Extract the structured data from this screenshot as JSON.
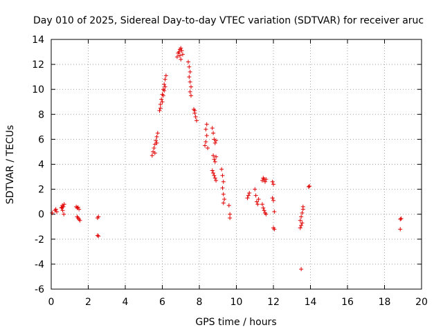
{
  "chart_data": {
    "type": "scatter",
    "title": "Day 010 of 2025, Sidereal Day-to-day VTEC variation (SDTVAR) for receiver aruc",
    "xlabel": "GPS time / hours",
    "ylabel": "SDTVAR / TECUs",
    "xlim": [
      0,
      20
    ],
    "ylim": [
      -6,
      14
    ],
    "xticks": [
      "0",
      "2",
      "4",
      "6",
      "8",
      "10",
      "12",
      "14",
      "16",
      "18",
      "20"
    ],
    "yticks": [
      "-6",
      "-4",
      "-2",
      "0",
      "2",
      "4",
      "6",
      "8",
      "10",
      "12",
      "14"
    ],
    "grid": true,
    "marker": "+",
    "series_color": "#e00000",
    "series": [
      {
        "name": "SDTVAR",
        "points": [
          [
            0.05,
            0.1
          ],
          [
            0.2,
            0.3
          ],
          [
            0.25,
            0.4
          ],
          [
            0.3,
            0.2
          ],
          [
            0.55,
            0.5
          ],
          [
            0.6,
            0.7
          ],
          [
            0.65,
            0.6
          ],
          [
            0.7,
            0.8
          ],
          [
            0.62,
            0.3
          ],
          [
            0.68,
            0.0
          ],
          [
            0.58,
            0.55
          ],
          [
            1.35,
            0.6
          ],
          [
            1.4,
            0.5
          ],
          [
            1.45,
            0.55
          ],
          [
            1.5,
            0.4
          ],
          [
            1.4,
            -0.2
          ],
          [
            1.45,
            -0.3
          ],
          [
            1.5,
            -0.4
          ],
          [
            1.55,
            -0.5
          ],
          [
            2.5,
            -0.3
          ],
          [
            2.55,
            -0.2
          ],
          [
            2.5,
            -1.7
          ],
          [
            2.55,
            -1.75
          ],
          [
            5.45,
            4.7
          ],
          [
            5.5,
            5.0
          ],
          [
            5.55,
            5.3
          ],
          [
            5.6,
            5.6
          ],
          [
            5.65,
            5.9
          ],
          [
            5.7,
            6.2
          ],
          [
            5.75,
            6.5
          ],
          [
            5.6,
            4.9
          ],
          [
            5.7,
            5.7
          ],
          [
            5.85,
            8.3
          ],
          [
            5.9,
            8.8
          ],
          [
            5.95,
            9.2
          ],
          [
            6.0,
            9.6
          ],
          [
            6.05,
            10.0
          ],
          [
            6.1,
            10.4
          ],
          [
            6.15,
            10.8
          ],
          [
            6.2,
            11.1
          ],
          [
            5.9,
            8.5
          ],
          [
            6.0,
            9.0
          ],
          [
            6.05,
            9.5
          ],
          [
            6.1,
            9.9
          ],
          [
            6.15,
            10.2
          ],
          [
            6.8,
            12.6
          ],
          [
            6.85,
            12.9
          ],
          [
            6.9,
            13.0
          ],
          [
            6.95,
            13.2
          ],
          [
            7.0,
            13.3
          ],
          [
            7.05,
            13.1
          ],
          [
            7.1,
            12.8
          ],
          [
            7.0,
            12.4
          ],
          [
            6.95,
            12.7
          ],
          [
            7.4,
            12.2
          ],
          [
            7.45,
            11.8
          ],
          [
            7.5,
            11.4
          ],
          [
            7.45,
            11.0
          ],
          [
            7.5,
            10.6
          ],
          [
            7.55,
            10.2
          ],
          [
            7.5,
            9.8
          ],
          [
            7.55,
            9.5
          ],
          [
            7.7,
            8.4
          ],
          [
            7.75,
            8.1
          ],
          [
            7.8,
            7.8
          ],
          [
            7.85,
            7.5
          ],
          [
            7.75,
            8.3
          ],
          [
            8.3,
            5.5
          ],
          [
            8.35,
            5.8
          ],
          [
            8.4,
            6.3
          ],
          [
            8.35,
            6.8
          ],
          [
            8.4,
            7.2
          ],
          [
            8.45,
            5.3
          ],
          [
            8.7,
            6.9
          ],
          [
            8.75,
            6.5
          ],
          [
            8.8,
            6.0
          ],
          [
            8.85,
            5.7
          ],
          [
            8.9,
            5.9
          ],
          [
            8.75,
            4.7
          ],
          [
            8.8,
            4.4
          ],
          [
            8.85,
            4.2
          ],
          [
            8.9,
            4.6
          ],
          [
            8.7,
            3.5
          ],
          [
            8.75,
            3.3
          ],
          [
            8.8,
            3.1
          ],
          [
            8.85,
            2.9
          ],
          [
            8.9,
            2.7
          ],
          [
            9.2,
            3.6
          ],
          [
            9.25,
            3.1
          ],
          [
            9.3,
            2.6
          ],
          [
            9.25,
            2.1
          ],
          [
            9.3,
            1.6
          ],
          [
            9.35,
            1.2
          ],
          [
            9.3,
            0.9
          ],
          [
            9.6,
            0.7
          ],
          [
            9.65,
            0.0
          ],
          [
            9.65,
            -0.3
          ],
          [
            10.6,
            1.3
          ],
          [
            10.65,
            1.5
          ],
          [
            10.7,
            1.7
          ],
          [
            11.0,
            2.0
          ],
          [
            11.05,
            1.5
          ],
          [
            11.1,
            1.0
          ],
          [
            11.15,
            0.8
          ],
          [
            11.2,
            1.2
          ],
          [
            11.4,
            2.7
          ],
          [
            11.45,
            2.9
          ],
          [
            11.5,
            2.8
          ],
          [
            11.55,
            2.6
          ],
          [
            11.6,
            2.8
          ],
          [
            11.4,
            0.8
          ],
          [
            11.45,
            0.5
          ],
          [
            11.5,
            0.3
          ],
          [
            11.55,
            0.1
          ],
          [
            11.6,
            0.0
          ],
          [
            11.95,
            2.6
          ],
          [
            12.0,
            2.4
          ],
          [
            11.95,
            1.3
          ],
          [
            12.0,
            1.1
          ],
          [
            12.05,
            0.2
          ],
          [
            12.0,
            -1.1
          ],
          [
            12.05,
            -1.2
          ],
          [
            13.45,
            -0.5
          ],
          [
            13.5,
            -0.2
          ],
          [
            13.55,
            0.1
          ],
          [
            13.6,
            0.4
          ],
          [
            13.5,
            -0.9
          ],
          [
            13.55,
            -0.7
          ],
          [
            13.45,
            -1.1
          ],
          [
            13.6,
            0.6
          ],
          [
            13.5,
            -4.4
          ],
          [
            13.9,
            2.2
          ],
          [
            13.95,
            2.25
          ],
          [
            18.85,
            -0.4
          ],
          [
            18.9,
            -0.35
          ],
          [
            18.85,
            -1.2
          ]
        ]
      }
    ]
  }
}
